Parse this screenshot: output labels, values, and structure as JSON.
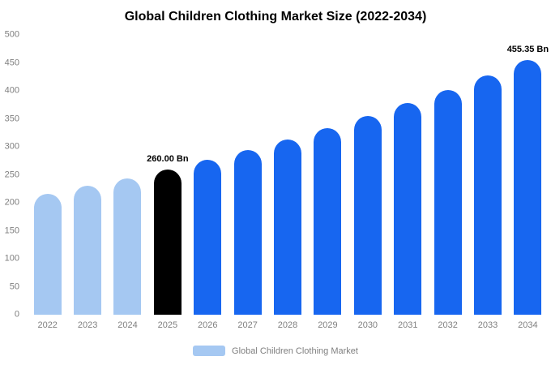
{
  "title": "Global Children Clothing Market Size (2022-2034)",
  "legend": {
    "label": "Global Children Clothing Market"
  },
  "colors": {
    "past": "#a5c8f2",
    "highlight": "#000000",
    "forecast": "#1766f0",
    "axis_text": "#7f7f7f",
    "title_text": "#000000"
  },
  "chart_data": {
    "type": "bar",
    "title": "Global Children Clothing Market Size (2022-2034)",
    "categories": [
      "2022",
      "2023",
      "2024",
      "2025",
      "2026",
      "2027",
      "2028",
      "2029",
      "2030",
      "2031",
      "2032",
      "2033",
      "2034"
    ],
    "values": [
      216,
      230,
      244,
      260,
      277,
      294,
      313,
      334,
      355,
      378,
      402,
      428,
      455.35
    ],
    "unit": "Bn",
    "ylim": [
      0,
      500
    ],
    "yticks": [
      0,
      50,
      100,
      150,
      200,
      250,
      300,
      350,
      400,
      450,
      500
    ],
    "bar_colors": [
      "past",
      "past",
      "past",
      "highlight",
      "forecast",
      "forecast",
      "forecast",
      "forecast",
      "forecast",
      "forecast",
      "forecast",
      "forecast",
      "forecast"
    ],
    "annotations": [
      {
        "category": "2025",
        "text": "260.00 Bn"
      },
      {
        "category": "2034",
        "text": "455.35 Bn"
      }
    ],
    "grid": false,
    "legend_position": "bottom",
    "legend_entries": [
      {
        "label": "Global Children Clothing Market",
        "color": "past"
      }
    ]
  }
}
